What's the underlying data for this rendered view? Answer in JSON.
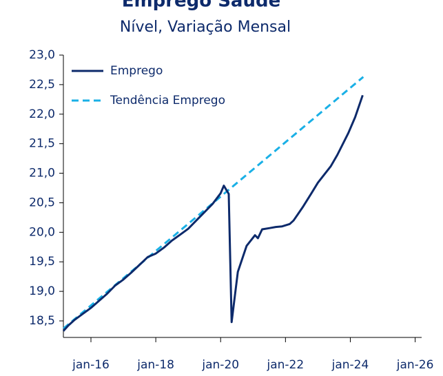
{
  "chart_data": {
    "type": "line",
    "title": "Emprego Saúde",
    "subtitle": "Nível, Variação Mensal",
    "xlim": [
      2015.15,
      2026.2
    ],
    "ylim": [
      18.22,
      23.0
    ],
    "xticks": [
      {
        "value": 2016,
        "label": "jan-16"
      },
      {
        "value": 2018,
        "label": "jan-18"
      },
      {
        "value": 2020,
        "label": "jan-20"
      },
      {
        "value": 2022,
        "label": "jan-22"
      },
      {
        "value": 2024,
        "label": "jan-24"
      },
      {
        "value": 2026,
        "label": "jan-26"
      }
    ],
    "yticks": [
      {
        "value": 18.5,
        "label": "18,5"
      },
      {
        "value": 19.0,
        "label": "19,0"
      },
      {
        "value": 19.5,
        "label": "19,5"
      },
      {
        "value": 20.0,
        "label": "20,0"
      },
      {
        "value": 20.5,
        "label": "20,5"
      },
      {
        "value": 21.0,
        "label": "21,0"
      },
      {
        "value": 21.5,
        "label": "21,5"
      },
      {
        "value": 22.0,
        "label": "22,0"
      },
      {
        "value": 22.5,
        "label": "22,5"
      },
      {
        "value": 23.0,
        "label": "23,0"
      }
    ],
    "legend": "upper left",
    "series": [
      {
        "name": "Emprego",
        "color": "#0d2a6b",
        "dash": false,
        "x": [
          2015.15,
          2015.3,
          2015.5,
          2015.75,
          2016.0,
          2016.25,
          2016.5,
          2016.75,
          2017.0,
          2017.25,
          2017.5,
          2017.75,
          2018.0,
          2018.25,
          2018.5,
          2018.75,
          2019.0,
          2019.25,
          2019.5,
          2019.75,
          2020.0,
          2020.1,
          2020.25,
          2020.34,
          2020.53,
          2020.8,
          2021.06,
          2021.15,
          2021.28,
          2021.5,
          2021.7,
          2021.9,
          2022.13,
          2022.25,
          2022.4,
          2022.55,
          2022.8,
          2023.0,
          2023.2,
          2023.4,
          2023.6,
          2023.94,
          2024.15,
          2024.38
        ],
        "values": [
          18.33,
          18.42,
          18.52,
          18.62,
          18.72,
          18.84,
          18.96,
          19.1,
          19.2,
          19.32,
          19.45,
          19.58,
          19.64,
          19.74,
          19.86,
          19.96,
          20.06,
          20.2,
          20.34,
          20.48,
          20.66,
          20.79,
          20.65,
          18.48,
          19.33,
          19.77,
          19.95,
          19.9,
          20.05,
          20.07,
          20.09,
          20.1,
          20.14,
          20.2,
          20.32,
          20.44,
          20.66,
          20.84,
          20.98,
          21.12,
          21.31,
          21.68,
          21.95,
          22.32
        ]
      },
      {
        "name": "Tendência Emprego",
        "color": "#1ab0e6",
        "dash": true,
        "x": [
          2015.15,
          2024.4
        ],
        "values": [
          18.37,
          22.63
        ]
      }
    ]
  }
}
